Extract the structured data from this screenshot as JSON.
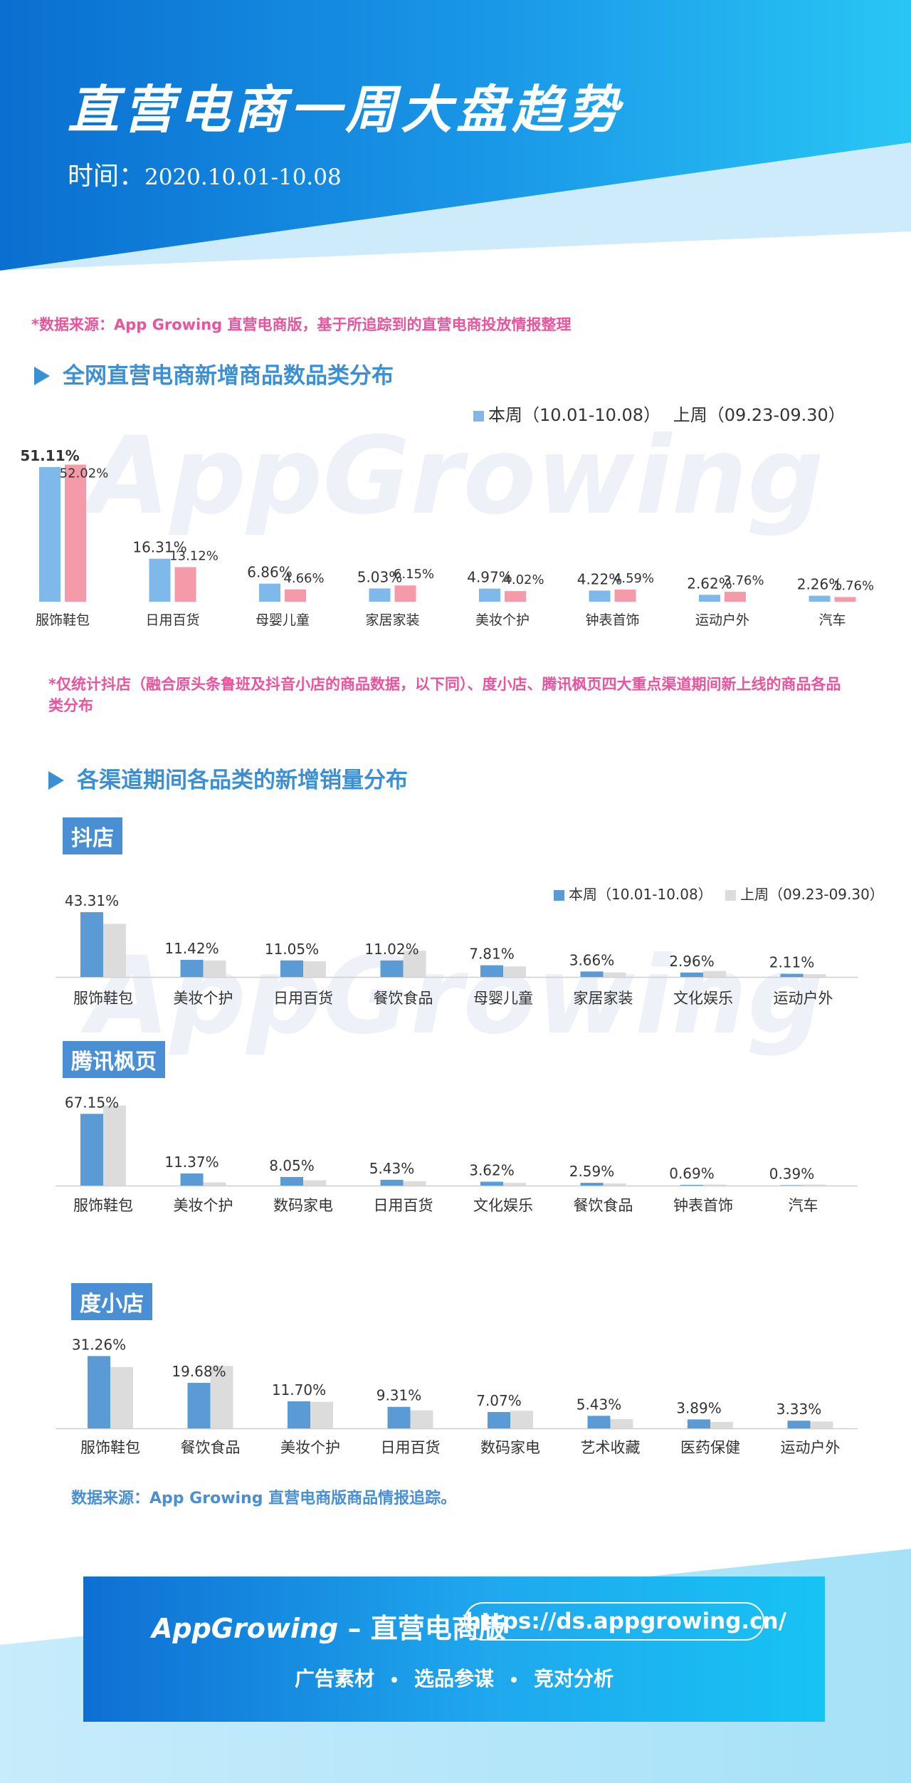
{
  "header": {
    "title": "直营电商一周大盘趋势",
    "time_label": "时间：",
    "time_value": "2020.10.01-10.08"
  },
  "source_note_1": "*数据来源：App Growing 直营电商版，基于所追踪到的直营电商投放情报整理",
  "section1": {
    "heading": "全网直营电商新增商品数品类分布",
    "legend_this_week": "本周（10.01-10.08）",
    "legend_last_week": "上周（09.23-09.30）",
    "note": "*仅统计抖店（融合原头条鲁班及抖音小店的商品数据，以下同）、度小店、腾讯枫页四大重点渠道期间新上线的商品各品类分布"
  },
  "section2": {
    "heading": "各渠道期间各品类的新增销量分布",
    "legend_this_week": "本周（10.01-10.08）",
    "legend_last_week": "上周（09.23-09.30）"
  },
  "chart_data": [
    {
      "type": "bar",
      "title": "全网直营电商新增商品数品类分布",
      "categories": [
        "服饰鞋包",
        "日用百货",
        "母婴儿童",
        "家居家装",
        "美妆个护",
        "钟表首饰",
        "运动户外",
        "汽车"
      ],
      "series": [
        {
          "name": "本周（10.01-10.08）",
          "values": [
            51.11,
            16.31,
            6.86,
            5.03,
            4.97,
            4.22,
            2.62,
            2.26
          ],
          "labels": [
            "51.11%",
            "16.31%",
            "6.86%",
            "5.03%",
            "4.97%",
            "4.22%",
            "2.62%",
            "2.26%"
          ]
        },
        {
          "name": "上周（09.23-09.30）",
          "values": [
            52.02,
            13.12,
            4.66,
            6.15,
            4.02,
            4.59,
            3.76,
            1.76
          ],
          "labels": [
            "52.02%",
            "13.12%",
            "4.66%",
            "6.15%",
            "4.02%",
            "4.59%",
            "3.76%",
            "1.76%"
          ]
        }
      ],
      "colors": [
        "#7fb8ea",
        "#f59aa8"
      ],
      "legend": "top-right"
    },
    {
      "type": "bar",
      "title": "抖店",
      "categories": [
        "服饰鞋包",
        "美妆个护",
        "日用百货",
        "餐饮食品",
        "母婴儿童",
        "家居家装",
        "文化娱乐",
        "运动户外"
      ],
      "series": [
        {
          "name": "本周（10.01-10.08）",
          "values": [
            43.31,
            11.42,
            11.05,
            11.02,
            7.81,
            3.66,
            2.96,
            2.11
          ],
          "labels": [
            "43.31%",
            "11.42%",
            "11.05%",
            "11.02%",
            "7.81%",
            "3.66%",
            "2.96%",
            "2.11%"
          ]
        },
        {
          "name": "上周（09.23-09.30）",
          "values": [
            35.5,
            11.0,
            10.5,
            17.5,
            7.0,
            3.0,
            4.0,
            1.8
          ]
        }
      ],
      "colors": [
        "#5b9bd5",
        "#dcdcdc"
      ],
      "legend": "top-right"
    },
    {
      "type": "bar",
      "title": "腾讯枫页",
      "categories": [
        "服饰鞋包",
        "美妆个护",
        "数码家电",
        "日用百货",
        "文化娱乐",
        "餐饮食品",
        "钟表首饰",
        "汽车"
      ],
      "series": [
        {
          "name": "本周（10.01-10.08）",
          "values": [
            67.15,
            11.37,
            8.05,
            5.43,
            3.62,
            2.59,
            0.69,
            0.39
          ],
          "labels": [
            "67.15%",
            "11.37%",
            "8.05%",
            "5.43%",
            "3.62%",
            "2.59%",
            "0.69%",
            "0.39%"
          ]
        },
        {
          "name": "上周（09.23-09.30）",
          "values": [
            75.0,
            3.0,
            5.0,
            4.0,
            2.5,
            2.0,
            1.0,
            1.0
          ]
        }
      ],
      "colors": [
        "#5b9bd5",
        "#dcdcdc"
      ]
    },
    {
      "type": "bar",
      "title": "度小店",
      "categories": [
        "服饰鞋包",
        "餐饮食品",
        "美妆个护",
        "日用百货",
        "数码家电",
        "艺术收藏",
        "医药保健",
        "运动户外"
      ],
      "series": [
        {
          "name": "本周（10.01-10.08）",
          "values": [
            31.26,
            19.68,
            11.7,
            9.31,
            7.07,
            5.43,
            3.89,
            3.33
          ],
          "labels": [
            "31.26%",
            "19.68%",
            "11.70%",
            "9.31%",
            "7.07%",
            "5.43%",
            "3.89%",
            "3.33%"
          ]
        },
        {
          "name": "上周（09.23-09.30）",
          "values": [
            26.5,
            27.0,
            11.5,
            7.8,
            7.6,
            4.0,
            2.8,
            3.0
          ]
        }
      ],
      "colors": [
        "#5b9bd5",
        "#dcdcdc"
      ]
    }
  ],
  "source_note_2": "数据来源：App Growing 直营电商版商品情报追踪。",
  "footer": {
    "brand": "AppGrowing",
    "brand_suffix": " – 直营电商版",
    "url": "https://ds.appgrowing.cn/",
    "taglines": [
      "广告素材",
      "选品参谋",
      "竞对分析"
    ]
  },
  "watermark": "AppGrowing",
  "colors": {
    "accent": "#3b8fd4",
    "pink_note": "#e9559c",
    "header_blue": "#0a7fd8"
  }
}
